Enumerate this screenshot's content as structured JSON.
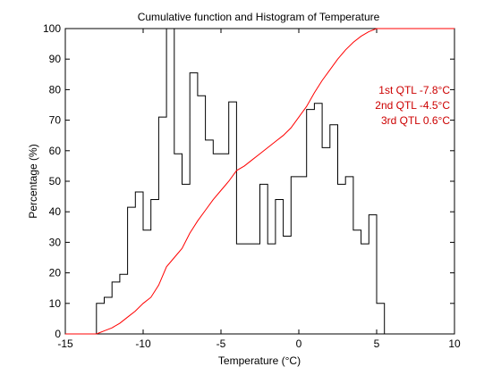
{
  "chart_data": {
    "type": "line",
    "title": "Cumulative function and Histogram of Temperature",
    "xlabel": "Temperature (°C)",
    "ylabel": "Percentage (%)",
    "xlim": [
      -15,
      10
    ],
    "ylim": [
      0,
      100
    ],
    "xticks": [
      -15,
      -10,
      -5,
      0,
      5,
      10
    ],
    "yticks": [
      0,
      10,
      20,
      30,
      40,
      50,
      60,
      70,
      80,
      90,
      100
    ],
    "grid": false,
    "series": [
      {
        "style": "stairs",
        "color": "#000000",
        "x": [
          -13.0,
          -12.5,
          -12.0,
          -11.5,
          -11.0,
          -10.5,
          -10.0,
          -9.5,
          -9.0,
          -8.5,
          -8.0,
          -7.5,
          -7.0,
          -6.5,
          -6.0,
          -5.5,
          -5.0,
          -4.5,
          -4.0,
          -3.5,
          -3.0,
          -2.5,
          -2.0,
          -1.5,
          -1.0,
          -0.5,
          0.0,
          0.5,
          1.0,
          1.5,
          2.0,
          2.5,
          3.0,
          3.5,
          4.0,
          4.5,
          5.0,
          5.5
        ],
        "y": [
          10,
          12,
          17,
          19.5,
          41.5,
          46.5,
          34,
          44,
          71,
          100,
          59,
          49,
          85.5,
          78,
          63.5,
          59,
          59,
          76,
          29.5,
          29.5,
          29.5,
          49,
          29.5,
          44,
          32,
          51.5,
          51.5,
          73.5,
          75.5,
          61,
          68.5,
          49,
          51.5,
          34,
          29.5,
          39,
          10,
          0
        ]
      },
      {
        "style": "line",
        "color": "#ff0000",
        "x": [
          -15,
          -13,
          -12.5,
          -12,
          -11.5,
          -11,
          -10.5,
          -10,
          -9.5,
          -9,
          -8.5,
          -8,
          -7.5,
          -7,
          -6.5,
          -6,
          -5.5,
          -5,
          -4.5,
          -4,
          -3.5,
          -3,
          -2.5,
          -2,
          -1.5,
          -1,
          -0.5,
          0,
          0.5,
          1,
          1.5,
          2,
          2.5,
          3,
          3.5,
          4,
          4.5,
          5,
          10
        ],
        "y": [
          0,
          0,
          1,
          2,
          3.5,
          5.5,
          7.5,
          10,
          12,
          16,
          22,
          25,
          28,
          33,
          37,
          40.5,
          44,
          47,
          50,
          53.5,
          55,
          57,
          59,
          61,
          63,
          65,
          67.5,
          71,
          74.5,
          79,
          83,
          86.5,
          90,
          93,
          95.5,
          97.5,
          99,
          100,
          100
        ]
      }
    ],
    "annotations": {
      "color": "#cc0000",
      "lines": [
        "1st QTL -7.8°C",
        "2nd QTL -4.5°C",
        "3rd QTL  0.6°C"
      ]
    }
  }
}
